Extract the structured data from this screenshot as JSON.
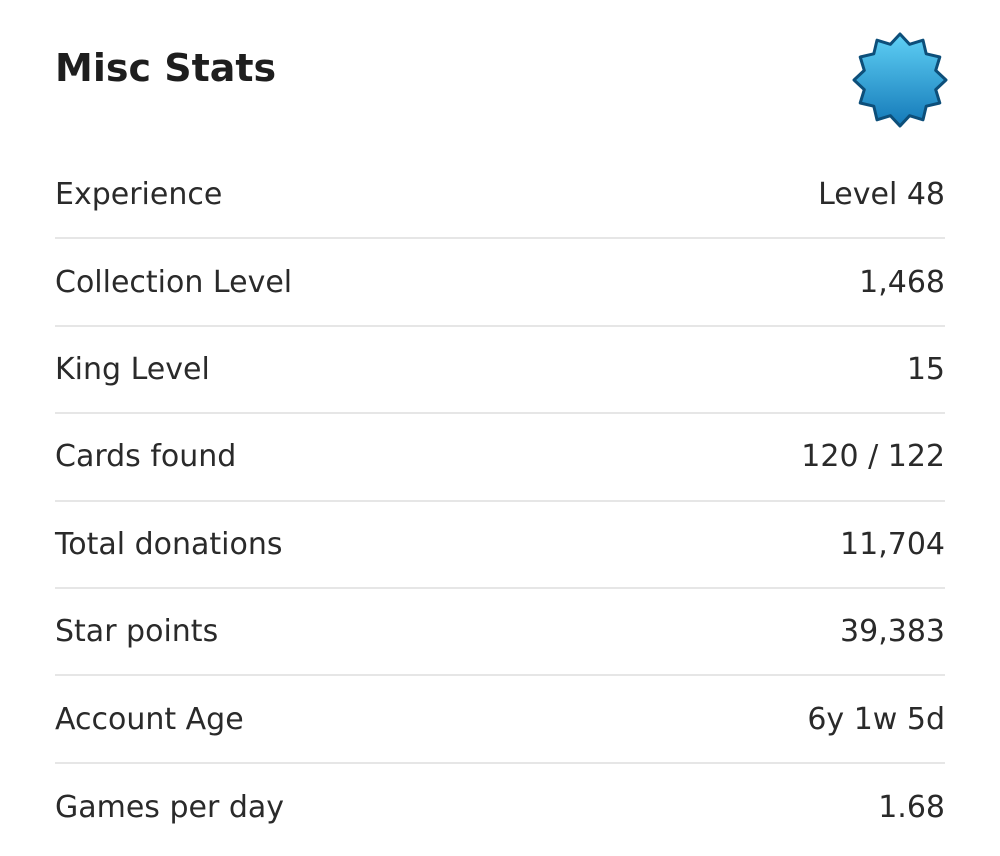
{
  "header": {
    "title": "Misc Stats"
  },
  "rows": [
    [
      "Experience",
      "Level 48"
    ],
    [
      "Collection Level",
      "1,468"
    ],
    [
      "King Level",
      "15"
    ],
    [
      "Cards found",
      "120 / 122"
    ],
    [
      "Total donations",
      "11,704"
    ],
    [
      "Star points",
      "39,383"
    ],
    [
      "Account Age",
      "6y 1w 5d"
    ],
    [
      "Games per day",
      "1.68"
    ]
  ]
}
